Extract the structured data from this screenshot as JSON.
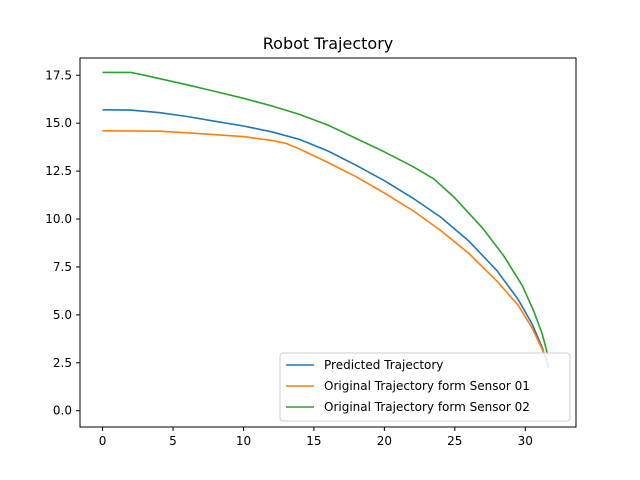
{
  "chart_data": {
    "type": "line",
    "title": "Robot Trajectory",
    "xlabel": "",
    "ylabel": "",
    "xlim": [
      -1.6,
      33.6
    ],
    "ylim": [
      -0.85,
      18.4
    ],
    "xticks": [
      0,
      5,
      10,
      15,
      20,
      25,
      30
    ],
    "xtick_labels": [
      "0",
      "5",
      "10",
      "15",
      "20",
      "25",
      "30"
    ],
    "yticks": [
      0.0,
      2.5,
      5.0,
      7.5,
      10.0,
      12.5,
      15.0,
      17.5
    ],
    "ytick_labels": [
      "0.0",
      "2.5",
      "5.0",
      "7.5",
      "10.0",
      "12.5",
      "15.0",
      "17.5"
    ],
    "grid": false,
    "legend": "lower-right",
    "series": [
      {
        "name": "Predicted Trajectory",
        "color": "#1f77b4",
        "points": [
          [
            0,
            15.7
          ],
          [
            2,
            15.68
          ],
          [
            4,
            15.55
          ],
          [
            6,
            15.35
          ],
          [
            8,
            15.1
          ],
          [
            10,
            14.85
          ],
          [
            12,
            14.55
          ],
          [
            14,
            14.15
          ],
          [
            16,
            13.55
          ],
          [
            18,
            12.8
          ],
          [
            20,
            12.0
          ],
          [
            22,
            11.1
          ],
          [
            24,
            10.1
          ],
          [
            26,
            8.85
          ],
          [
            28,
            7.3
          ],
          [
            29.5,
            5.8
          ],
          [
            30.5,
            4.5
          ],
          [
            31.2,
            3.3
          ],
          [
            31.5,
            2.6
          ],
          [
            31.7,
            2.2
          ]
        ]
      },
      {
        "name": "Original Trajectory form Sensor 01",
        "color": "#ff7f0e",
        "points": [
          [
            0,
            14.6
          ],
          [
            4,
            14.58
          ],
          [
            6,
            14.5
          ],
          [
            8,
            14.4
          ],
          [
            10,
            14.3
          ],
          [
            12,
            14.1
          ],
          [
            13,
            13.95
          ],
          [
            14,
            13.65
          ],
          [
            16,
            12.95
          ],
          [
            18,
            12.2
          ],
          [
            20,
            11.35
          ],
          [
            22,
            10.45
          ],
          [
            24,
            9.4
          ],
          [
            26,
            8.2
          ],
          [
            28,
            6.75
          ],
          [
            29.5,
            5.5
          ],
          [
            30.5,
            4.3
          ],
          [
            31.2,
            3.2
          ],
          [
            31.6,
            2.6
          ]
        ]
      },
      {
        "name": "Original Trajectory form Sensor 02",
        "color": "#2ca02c",
        "points": [
          [
            0,
            17.65
          ],
          [
            2,
            17.65
          ],
          [
            3,
            17.5
          ],
          [
            6,
            17.0
          ],
          [
            8,
            16.65
          ],
          [
            10,
            16.3
          ],
          [
            12,
            15.9
          ],
          [
            14,
            15.45
          ],
          [
            16,
            14.9
          ],
          [
            18,
            14.2
          ],
          [
            20,
            13.5
          ],
          [
            22,
            12.75
          ],
          [
            23.5,
            12.1
          ],
          [
            25,
            11.1
          ],
          [
            27,
            9.5
          ],
          [
            28.5,
            8.05
          ],
          [
            29.8,
            6.5
          ],
          [
            30.6,
            5.2
          ],
          [
            31.2,
            4.0
          ],
          [
            31.6,
            2.9
          ]
        ]
      }
    ]
  }
}
